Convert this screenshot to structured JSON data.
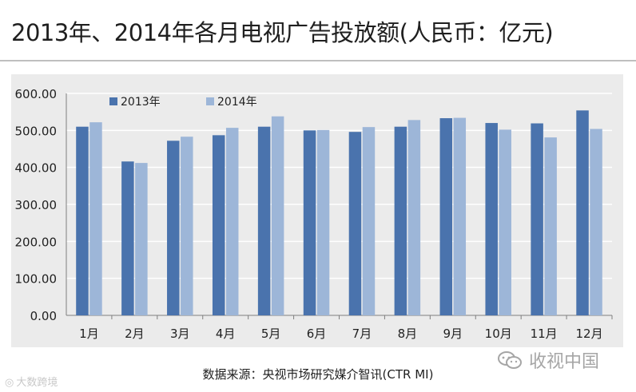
{
  "title": "2013年、2014年各月电视广告投放额(人民币：亿元)",
  "source": "数据来源：央视市场研究媒介智讯(CTR MI)",
  "watermark_left": "大数跨境",
  "watermark_right": "收视中国",
  "colors": {
    "series_2013": "#4a73ad",
    "series_2014": "#9db6d8",
    "background": "#ebebeb"
  },
  "chart_data": {
    "type": "bar",
    "title": "2013年、2014年各月电视广告投放额(人民币：亿元)",
    "xlabel": "",
    "ylabel": "",
    "ylim": [
      0,
      600
    ],
    "yticks": [
      "0.00",
      "100.00",
      "200.00",
      "300.00",
      "400.00",
      "500.00",
      "600.00"
    ],
    "grid": true,
    "legend": "top-left",
    "categories": [
      "1月",
      "2月",
      "3月",
      "4月",
      "5月",
      "6月",
      "7月",
      "8月",
      "9月",
      "10月",
      "11月",
      "12月"
    ],
    "series": [
      {
        "name": "2013年",
        "values": [
          510,
          416,
          472,
          487,
          510,
          500,
          496,
          510,
          533,
          520,
          519,
          554
        ]
      },
      {
        "name": "2014年",
        "values": [
          522,
          412,
          483,
          507,
          538,
          501,
          509,
          528,
          534,
          502,
          481,
          504
        ]
      }
    ]
  }
}
